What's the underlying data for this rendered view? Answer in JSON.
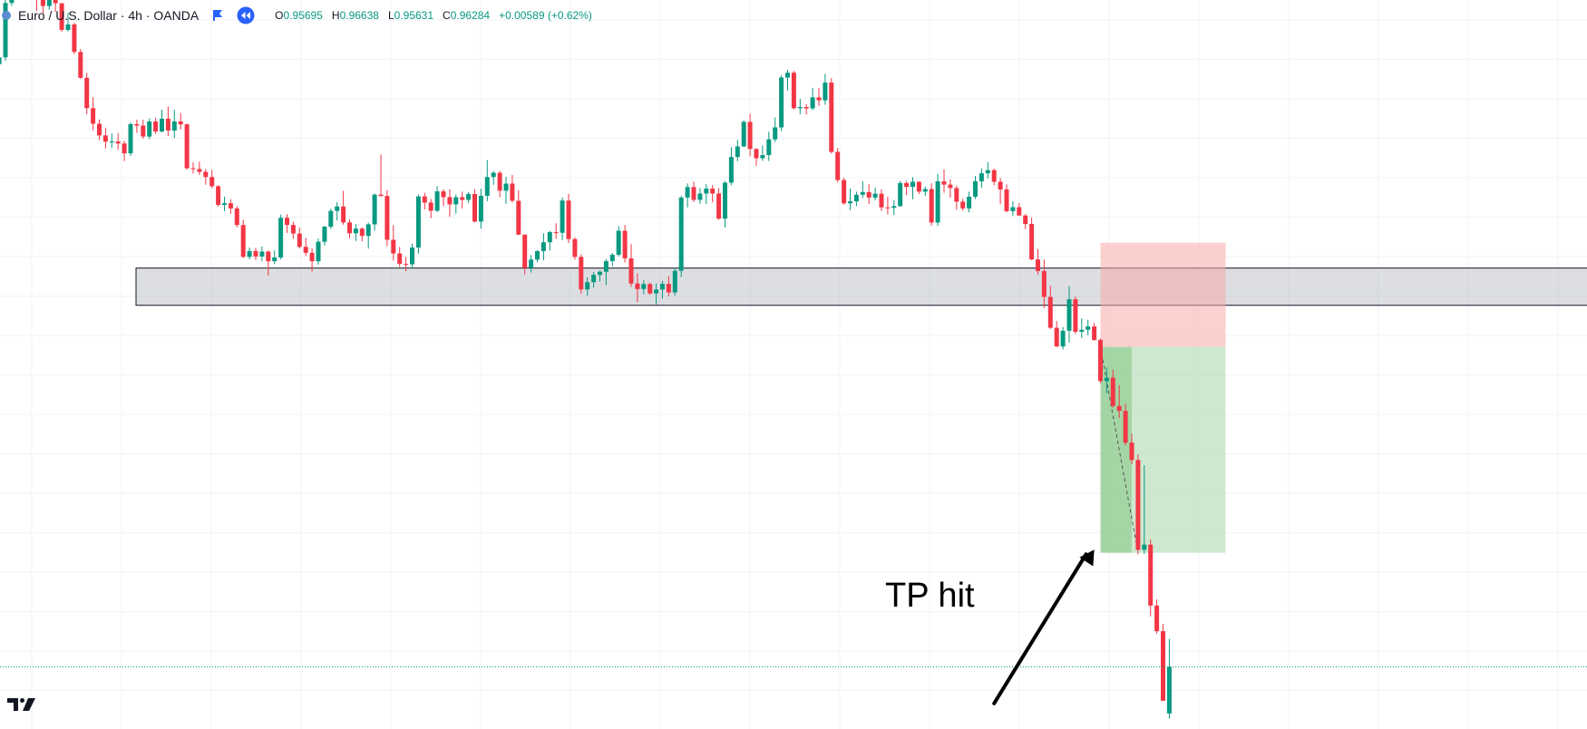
{
  "header": {
    "symbol": "Euro / U.S. Dollar · 4h · OANDA",
    "open_label": "O",
    "open": "0.95695",
    "high_label": "H",
    "high": "0.96638",
    "low_label": "L",
    "low": "0.95631",
    "close_label": "C",
    "close": "0.96284",
    "change": "+0.00589 (+0.62%)"
  },
  "annotation": {
    "text": "TP hit"
  },
  "colors": {
    "up": "#089981",
    "down": "#f23645",
    "support_zone": "#d1d4dc",
    "stop_zone": "#f7a9a7",
    "target_zone": "#a5d6a7",
    "price_line": "#089981"
  },
  "icons": {
    "symbol": "symbol-dot-icon",
    "flag": "flag-icon",
    "replay": "replay-icon",
    "logo": "tradingview-logo-icon",
    "arrow": "arrow-icon"
  },
  "chart_data": {
    "type": "candlestick",
    "symbol": "EURUSD",
    "interval": "4h",
    "grid": true,
    "ylim": [
      0.955,
      1.047
    ],
    "candles": [
      [
        0,
        1.04201,
        1.04305,
        1.03792,
        1.0389
      ],
      [
        1,
        1.0389,
        1.04097,
        1.03747,
        1.03976
      ],
      [
        2,
        1.03976,
        1.04722,
        1.03934,
        1.04662
      ],
      [
        3,
        1.04662,
        1.04953,
        1.04627,
        1.04948
      ],
      [
        4,
        1.04948,
        1.05007,
        1.04736,
        1.04891
      ],
      [
        5,
        1.04891,
        1.05084,
        1.04873,
        1.04966
      ],
      [
        6,
        1.04966,
        1.05126,
        1.04747,
        1.04842
      ],
      [
        7,
        1.04842,
        1.04857,
        1.04564,
        1.04716
      ],
      [
        8,
        1.04716,
        1.04862,
        1.04528,
        1.04624
      ],
      [
        9,
        1.04624,
        1.04842,
        1.04576,
        1.04761
      ],
      [
        10,
        1.04761,
        1.04863,
        1.04549,
        1.04659
      ],
      [
        11,
        1.04659,
        1.0466,
        1.04299,
        1.04322
      ],
      [
        12,
        1.04322,
        1.04535,
        1.04304,
        1.04392
      ],
      [
        13,
        1.04392,
        1.04411,
        1.04016,
        1.04045
      ],
      [
        14,
        1.04045,
        1.04082,
        1.03706,
        1.03718
      ],
      [
        15,
        1.03718,
        1.03781,
        1.03257,
        1.03335
      ],
      [
        16,
        1.03335,
        1.03472,
        1.03055,
        1.03138
      ],
      [
        17,
        1.03138,
        1.03193,
        1.02934,
        1.02991
      ],
      [
        18,
        1.02991,
        1.03089,
        1.02825,
        1.02912
      ],
      [
        19,
        1.02912,
        1.03015,
        1.02835,
        1.02914
      ],
      [
        20,
        1.02914,
        1.03021,
        1.02809,
        1.02889
      ],
      [
        21,
        1.02889,
        1.02923,
        1.02667,
        1.02765
      ],
      [
        22,
        1.02765,
        1.03155,
        1.02732,
        1.03133
      ],
      [
        23,
        1.03133,
        1.0319,
        1.03024,
        1.03115
      ],
      [
        24,
        1.03115,
        1.03191,
        1.02949,
        1.02977
      ],
      [
        25,
        1.02977,
        1.03206,
        1.02944,
        1.03167
      ],
      [
        26,
        1.03167,
        1.03215,
        1.03011,
        1.03041
      ],
      [
        27,
        1.03041,
        1.03316,
        1.03029,
        1.03202
      ],
      [
        28,
        1.03202,
        1.03356,
        1.02984,
        1.03053
      ],
      [
        29,
        1.03053,
        1.03314,
        1.02957,
        1.03168
      ],
      [
        30,
        1.03168,
        1.03275,
        1.03067,
        1.03131
      ],
      [
        31,
        1.03131,
        1.03141,
        1.02559,
        1.02577
      ],
      [
        32,
        1.02577,
        1.02653,
        1.02513,
        1.02567
      ],
      [
        33,
        1.02567,
        1.0266,
        1.02493,
        1.02531
      ],
      [
        34,
        1.02531,
        1.02566,
        1.02368,
        1.02466
      ],
      [
        35,
        1.02466,
        1.02555,
        1.02325,
        1.0235
      ],
      [
        36,
        1.0235,
        1.02363,
        1.02089,
        1.02114
      ],
      [
        37,
        1.02114,
        1.02219,
        1.02034,
        1.02135
      ],
      [
        38,
        1.02135,
        1.02186,
        1.02003,
        1.0207
      ],
      [
        39,
        1.0207,
        1.02097,
        1.01831,
        1.0186
      ],
      [
        40,
        1.0186,
        1.01928,
        1.01443,
        1.01459
      ],
      [
        41,
        1.01459,
        1.01576,
        1.01426,
        1.01532
      ],
      [
        42,
        1.01532,
        1.01572,
        1.01419,
        1.01463
      ],
      [
        43,
        1.01463,
        1.01589,
        1.01402,
        1.01525
      ],
      [
        44,
        1.01525,
        1.01538,
        1.01224,
        1.01403
      ],
      [
        45,
        1.01403,
        1.01539,
        1.01365,
        1.01451
      ],
      [
        46,
        1.01451,
        1.01992,
        1.01427,
        1.01951
      ],
      [
        47,
        1.01951,
        1.01996,
        1.0176,
        1.01861
      ],
      [
        48,
        1.01861,
        1.01903,
        1.01685,
        1.01753
      ],
      [
        49,
        1.01753,
        1.01827,
        1.01565,
        1.01585
      ],
      [
        50,
        1.01585,
        1.01699,
        1.0147,
        1.0151
      ],
      [
        51,
        1.0151,
        1.01565,
        1.01273,
        1.01403
      ],
      [
        52,
        1.01403,
        1.01691,
        1.01361,
        1.01649
      ],
      [
        53,
        1.01649,
        1.01851,
        1.01601,
        1.01839
      ],
      [
        54,
        1.01839,
        1.02065,
        1.01813,
        1.02039
      ],
      [
        55,
        1.02039,
        1.02148,
        1.01918,
        1.02094
      ],
      [
        56,
        1.02094,
        1.02291,
        1.01864,
        1.01893
      ],
      [
        57,
        1.01893,
        1.01932,
        1.01693,
        1.01756
      ],
      [
        58,
        1.01756,
        1.01872,
        1.01659,
        1.01815
      ],
      [
        59,
        1.01815,
        1.01828,
        1.01656,
        1.01723
      ],
      [
        60,
        1.01723,
        1.0189,
        1.01562,
        1.01869
      ],
      [
        61,
        1.01869,
        1.02258,
        1.01789,
        1.02244
      ],
      [
        62,
        1.02244,
        1.02752,
        1.02219,
        1.02227
      ],
      [
        63,
        1.02227,
        1.02302,
        1.01593,
        1.01674
      ],
      [
        64,
        1.01674,
        1.01859,
        1.01411,
        1.01501
      ],
      [
        65,
        1.01501,
        1.01583,
        1.01329,
        1.01371
      ],
      [
        66,
        1.01371,
        1.01457,
        1.01276,
        1.01364
      ],
      [
        67,
        1.01364,
        1.01624,
        1.01312,
        1.01576
      ],
      [
        68,
        1.01576,
        1.02246,
        1.01498,
        1.02221
      ],
      [
        69,
        1.02221,
        1.02267,
        1.02058,
        1.02144
      ],
      [
        70,
        1.02144,
        1.02188,
        1.01946,
        1.0204
      ],
      [
        71,
        1.0204,
        1.0235,
        1.02023,
        1.02285
      ],
      [
        72,
        1.02285,
        1.02313,
        1.02098,
        1.02212
      ],
      [
        73,
        1.02212,
        1.02312,
        1.01964,
        1.02121
      ],
      [
        74,
        1.02121,
        1.02245,
        1.02005,
        1.02211
      ],
      [
        75,
        1.02211,
        1.02282,
        1.0207,
        1.02178
      ],
      [
        76,
        1.02178,
        1.02278,
        1.02136,
        1.02252
      ],
      [
        77,
        1.02252,
        1.0231,
        1.01893,
        1.01904
      ],
      [
        78,
        1.01904,
        1.02319,
        1.01814,
        1.02229
      ],
      [
        79,
        1.02229,
        1.0268,
        1.02161,
        1.02466
      ],
      [
        80,
        1.02466,
        1.02541,
        1.02368,
        1.0252
      ],
      [
        81,
        1.0252,
        1.02545,
        1.02211,
        1.02293
      ],
      [
        82,
        1.02293,
        1.02469,
        1.02127,
        1.02383
      ],
      [
        83,
        1.02383,
        1.02492,
        1.02144,
        1.02166
      ],
      [
        84,
        1.02166,
        1.02299,
        1.01733,
        1.01739
      ],
      [
        85,
        1.01739,
        1.01741,
        1.01238,
        1.01318
      ],
      [
        86,
        1.01318,
        1.01481,
        1.0126,
        1.01424
      ],
      [
        87,
        1.01424,
        1.01543,
        1.0139,
        1.01531
      ],
      [
        88,
        1.01531,
        1.01756,
        1.01417,
        1.01643
      ],
      [
        89,
        1.01643,
        1.01786,
        1.01537,
        1.0177
      ],
      [
        90,
        1.0177,
        1.01883,
        1.01685,
        1.01762
      ],
      [
        91,
        1.01762,
        1.02208,
        1.01669,
        1.02169
      ],
      [
        92,
        1.02169,
        1.02252,
        1.01633,
        1.01683
      ],
      [
        93,
        1.01683,
        1.01705,
        1.01424,
        1.01458
      ],
      [
        94,
        1.01458,
        1.01492,
        1.0099,
        1.01047
      ],
      [
        95,
        1.01047,
        1.01199,
        1.00969,
        1.01139
      ],
      [
        96,
        1.01139,
        1.01269,
        1.0107,
        1.01231
      ],
      [
        97,
        1.01231,
        1.01284,
        1.01147,
        1.01271
      ],
      [
        98,
        1.01271,
        1.01432,
        1.01102,
        1.01405
      ],
      [
        99,
        1.01405,
        1.01508,
        1.01339,
        1.01485
      ],
      [
        100,
        1.01485,
        1.01846,
        1.01465,
        1.01788
      ],
      [
        101,
        1.01788,
        1.01862,
        1.01386,
        1.0144
      ],
      [
        102,
        1.0144,
        1.01621,
        1.01079,
        1.01122
      ],
      [
        103,
        1.01122,
        1.01251,
        1.00886,
        1.01052
      ],
      [
        104,
        1.01052,
        1.01162,
        1.00987,
        1.01115
      ],
      [
        105,
        1.01115,
        1.01135,
        1.00982,
        1.00997
      ],
      [
        106,
        1.00997,
        1.01122,
        1.00858,
        1.01046
      ],
      [
        107,
        1.01046,
        1.01157,
        1.00931,
        1.01117
      ],
      [
        108,
        1.01117,
        1.01212,
        1.00959,
        1.01009
      ],
      [
        109,
        1.01009,
        1.01323,
        1.00971,
        1.01282
      ],
      [
        110,
        1.01282,
        1.0223,
        1.01205,
        1.02207
      ],
      [
        111,
        1.02207,
        1.02385,
        1.02083,
        1.02339
      ],
      [
        112,
        1.02339,
        1.02409,
        1.0215,
        1.02178
      ],
      [
        113,
        1.02178,
        1.02326,
        1.02127,
        1.02257
      ],
      [
        114,
        1.02257,
        1.02376,
        1.02125,
        1.0232
      ],
      [
        115,
        1.0232,
        1.02364,
        1.02146,
        1.02258
      ],
      [
        116,
        1.02258,
        1.02326,
        1.01924,
        1.01941
      ],
      [
        117,
        1.01941,
        1.02415,
        1.01829,
        1.02395
      ],
      [
        118,
        1.02395,
        1.02842,
        1.02363,
        1.02719
      ],
      [
        119,
        1.02719,
        1.02935,
        1.02665,
        1.02852
      ],
      [
        120,
        1.02852,
        1.03182,
        1.02843,
        1.03162
      ],
      [
        121,
        1.03162,
        1.03264,
        1.02726,
        1.0282
      ],
      [
        122,
        1.0282,
        1.0283,
        1.02607,
        1.02703
      ],
      [
        123,
        1.02703,
        1.02864,
        1.0267,
        1.02743
      ],
      [
        124,
        1.02743,
        1.03038,
        1.02668,
        1.02941
      ],
      [
        125,
        1.02941,
        1.03219,
        1.02908,
        1.03092
      ],
      [
        126,
        1.03092,
        1.0375,
        1.03046,
        1.03722
      ],
      [
        127,
        1.03722,
        1.0382,
        1.03557,
        1.03782
      ],
      [
        128,
        1.03782,
        1.03804,
        1.03318,
        1.03334
      ],
      [
        129,
        1.03334,
        1.03452,
        1.03257,
        1.0335
      ],
      [
        130,
        1.0335,
        1.03384,
        1.03254,
        1.03332
      ],
      [
        131,
        1.03332,
        1.03591,
        1.03309,
        1.03471
      ],
      [
        132,
        1.03471,
        1.03587,
        1.03363,
        1.03434
      ],
      [
        133,
        1.03434,
        1.03768,
        1.03378,
        1.03658
      ],
      [
        134,
        1.03658,
        1.03715,
        1.02761,
        1.02783
      ],
      [
        135,
        1.02783,
        1.02834,
        1.02398,
        1.02428
      ],
      [
        136,
        1.02428,
        1.02458,
        1.02116,
        1.02134
      ],
      [
        137,
        1.02134,
        1.02321,
        1.02047,
        1.02159
      ],
      [
        138,
        1.02159,
        1.02281,
        1.02098,
        1.02242
      ],
      [
        139,
        1.02242,
        1.02411,
        1.02202,
        1.02276
      ],
      [
        140,
        1.02276,
        1.02375,
        1.02126,
        1.02207
      ],
      [
        141,
        1.02207,
        1.02333,
        1.02171,
        1.02255
      ],
      [
        142,
        1.02255,
        1.02312,
        1.02036,
        1.02083
      ],
      [
        143,
        1.02083,
        1.02217,
        1.01993,
        1.02079
      ],
      [
        144,
        1.02079,
        1.02175,
        1.01988,
        1.02099
      ],
      [
        145,
        1.02099,
        1.02416,
        1.02089,
        1.0239
      ],
      [
        146,
        1.0239,
        1.02417,
        1.02239,
        1.02341
      ],
      [
        147,
        1.02341,
        1.02463,
        1.02186,
        1.02406
      ],
      [
        148,
        1.02406,
        1.02411,
        1.02252,
        1.02282
      ],
      [
        149,
        1.02282,
        1.02346,
        1.02226,
        1.02314
      ],
      [
        150,
        1.02314,
        1.02386,
        1.01853,
        1.01892
      ],
      [
        151,
        1.01892,
        1.02507,
        1.01849,
        1.02412
      ],
      [
        152,
        1.02412,
        1.02563,
        1.02268,
        1.0237
      ],
      [
        153,
        1.0237,
        1.02436,
        1.02204,
        1.02327
      ],
      [
        154,
        1.02327,
        1.02357,
        1.02052,
        1.02155
      ],
      [
        155,
        1.02155,
        1.0219,
        1.02042,
        1.0207
      ],
      [
        156,
        1.0207,
        1.02281,
        1.0202,
        1.02217
      ],
      [
        157,
        1.02217,
        1.02479,
        1.02188,
        1.02412
      ],
      [
        158,
        1.02412,
        1.02574,
        1.02332,
        1.02513
      ],
      [
        159,
        1.02513,
        1.02655,
        1.02449,
        1.02553
      ],
      [
        160,
        1.02553,
        1.02571,
        1.02361,
        1.02406
      ],
      [
        161,
        1.02406,
        1.02453,
        1.02122,
        1.02309
      ],
      [
        162,
        1.02309,
        1.02373,
        1.02023,
        1.02035
      ],
      [
        163,
        1.02035,
        1.02159,
        1.01973,
        1.02085
      ],
      [
        164,
        1.02085,
        1.02136,
        1.0198,
        1.0198
      ],
      [
        165,
        1.0198,
        1.01998,
        1.0181,
        1.01874
      ],
      [
        166,
        1.01874,
        1.01954,
        1.01418,
        1.01426
      ],
      [
        167,
        1.01426,
        1.01558,
        1.01237,
        1.0128
      ],
      [
        168,
        1.0128,
        1.01424,
        1.00813,
        1.00953
      ],
      [
        169,
        1.00953,
        1.01094,
        1.00548,
        1.00563
      ],
      [
        170,
        1.00563,
        1.00648,
        1.0032,
        1.00328
      ],
      [
        171,
        1.00328,
        1.00572,
        1.00291,
        1.00526
      ],
      [
        172,
        1.00526,
        1.01088,
        1.00376,
        1.00923
      ],
      [
        173,
        1.00923,
        1.00959,
        1.00486,
        1.00513
      ],
      [
        174,
        1.00513,
        1.00681,
        1.00434,
        1.00538
      ],
      [
        175,
        1.00538,
        1.00665,
        1.00469,
        1.0058
      ],
      [
        176,
        1.0058,
        1.00624,
        1.00398,
        1.0041
      ],
      [
        177,
        1.0041,
        1.00431,
        0.99866,
        0.9989
      ],
      [
        178,
        0.9989,
        1.00065,
        0.99736,
        0.99933
      ],
      [
        179,
        0.99933,
        1.00034,
        0.99554,
        0.99577
      ],
      [
        180,
        0.99577,
        0.99838,
        0.99428,
        0.99515
      ],
      [
        181,
        0.99515,
        0.99603,
        0.99077,
        0.99113
      ],
      [
        182,
        0.99113,
        0.99226,
        0.98842,
        0.98895
      ],
      [
        183,
        0.98895,
        0.98966,
        0.97706,
        0.97762
      ],
      [
        184,
        0.97762,
        0.9883,
        0.9771,
        0.97827
      ],
      [
        185,
        0.97827,
        0.97893,
        0.96921,
        0.97058
      ],
      [
        186,
        0.97058,
        0.97137,
        0.96703,
        0.96734
      ],
      [
        187,
        0.96734,
        0.96826,
        0.95856,
        0.95856
      ],
      [
        188,
        0.95695,
        0.96638,
        0.95631,
        0.96284
      ]
    ],
    "support_zone": [
      1.00847,
      1.01317
    ],
    "position": {
      "side": "short",
      "entry": 1.00322,
      "stop_loss": 1.01636,
      "take_profit": 0.97724,
      "start_index": 177,
      "fill_index": 182,
      "end_index": 197,
      "path_from": [
        177,
        1.00322
      ],
      "path_to": [
        183,
        0.97724
      ]
    },
    "last_price": 0.96284,
    "annotations": [
      {
        "text": "TP hit",
        "arrow_from": [
          160,
          0.95823
        ],
        "arrow_to": [
          176,
          0.97763
        ]
      }
    ]
  }
}
